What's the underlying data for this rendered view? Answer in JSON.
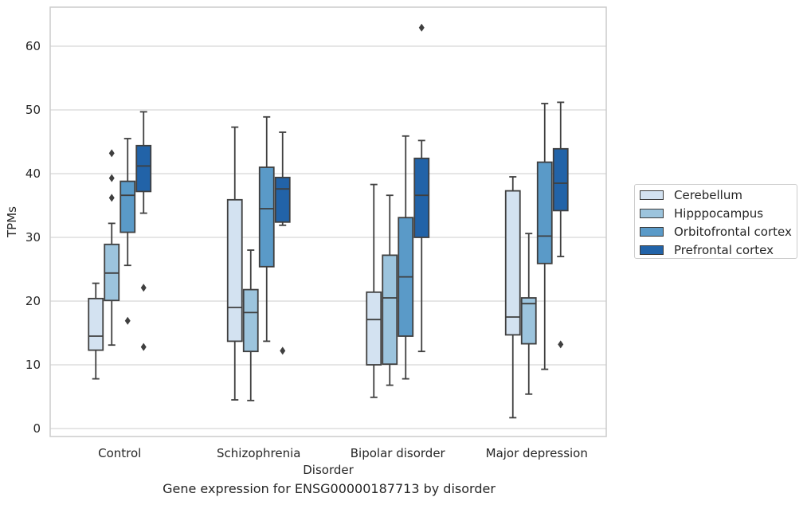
{
  "caption": "Gene expression for ENSG00000187713 by disorder",
  "chart_data": {
    "type": "box",
    "xlabel": "Disorder",
    "ylabel": "TPMs",
    "ylim": [
      -1,
      66
    ],
    "yticks": [
      0,
      10,
      20,
      30,
      40,
      50,
      60
    ],
    "grid": true,
    "legend_position": "right",
    "categories": [
      "Control",
      "Schizophrenia",
      "Bipolar disorder",
      "Major depression"
    ],
    "series": [
      {
        "name": "Cerebellum",
        "color": "#d3e2f1",
        "boxes": [
          {
            "whislo": 7.8,
            "q1": 12.3,
            "med": 14.5,
            "q3": 20.4,
            "whishi": 22.8,
            "fliers": []
          },
          {
            "whislo": 4.5,
            "q1": 13.7,
            "med": 19.0,
            "q3": 35.9,
            "whishi": 47.3,
            "fliers": []
          },
          {
            "whislo": 4.9,
            "q1": 10.0,
            "med": 17.1,
            "q3": 21.4,
            "whishi": 38.3,
            "fliers": []
          },
          {
            "whislo": 1.7,
            "q1": 14.7,
            "med": 17.5,
            "q3": 37.3,
            "whishi": 39.5,
            "fliers": []
          }
        ]
      },
      {
        "name": "Hipppocampus",
        "color": "#9cc4dd",
        "boxes": [
          {
            "whislo": 13.1,
            "q1": 20.1,
            "med": 24.4,
            "q3": 28.9,
            "whishi": 32.2,
            "fliers": [
              43.2,
              39.3,
              36.2
            ]
          },
          {
            "whislo": 4.4,
            "q1": 12.1,
            "med": 18.2,
            "q3": 21.8,
            "whishi": 28.0,
            "fliers": []
          },
          {
            "whislo": 6.8,
            "q1": 10.1,
            "med": 20.5,
            "q3": 27.2,
            "whishi": 36.6,
            "fliers": []
          },
          {
            "whislo": 5.4,
            "q1": 13.3,
            "med": 19.6,
            "q3": 20.5,
            "whishi": 30.6,
            "fliers": []
          }
        ]
      },
      {
        "name": "Orbitofrontal cortex",
        "color": "#5a9ac8",
        "boxes": [
          {
            "whislo": 25.6,
            "q1": 30.8,
            "med": 36.6,
            "q3": 38.8,
            "whishi": 45.5,
            "fliers": [
              16.9
            ]
          },
          {
            "whislo": 13.7,
            "q1": 25.4,
            "med": 34.5,
            "q3": 41.0,
            "whishi": 48.9,
            "fliers": []
          },
          {
            "whislo": 7.8,
            "q1": 14.5,
            "med": 23.8,
            "q3": 33.1,
            "whishi": 45.9,
            "fliers": []
          },
          {
            "whislo": 9.3,
            "q1": 25.9,
            "med": 30.2,
            "q3": 41.8,
            "whishi": 51.0,
            "fliers": []
          }
        ]
      },
      {
        "name": "Prefrontal cortex",
        "color": "#2263a8",
        "boxes": [
          {
            "whislo": 33.8,
            "q1": 37.2,
            "med": 41.2,
            "q3": 44.4,
            "whishi": 49.7,
            "fliers": [
              22.1,
              12.8
            ]
          },
          {
            "whislo": 31.9,
            "q1": 32.4,
            "med": 37.6,
            "q3": 39.4,
            "whishi": 46.5,
            "fliers": [
              12.2
            ]
          },
          {
            "whislo": 12.1,
            "q1": 30.0,
            "med": 36.6,
            "q3": 42.4,
            "whishi": 45.2,
            "fliers": [
              62.9
            ]
          },
          {
            "whislo": 27.0,
            "q1": 34.2,
            "med": 38.5,
            "q3": 43.9,
            "whishi": 51.2,
            "fliers": [
              13.2
            ]
          }
        ]
      }
    ]
  }
}
